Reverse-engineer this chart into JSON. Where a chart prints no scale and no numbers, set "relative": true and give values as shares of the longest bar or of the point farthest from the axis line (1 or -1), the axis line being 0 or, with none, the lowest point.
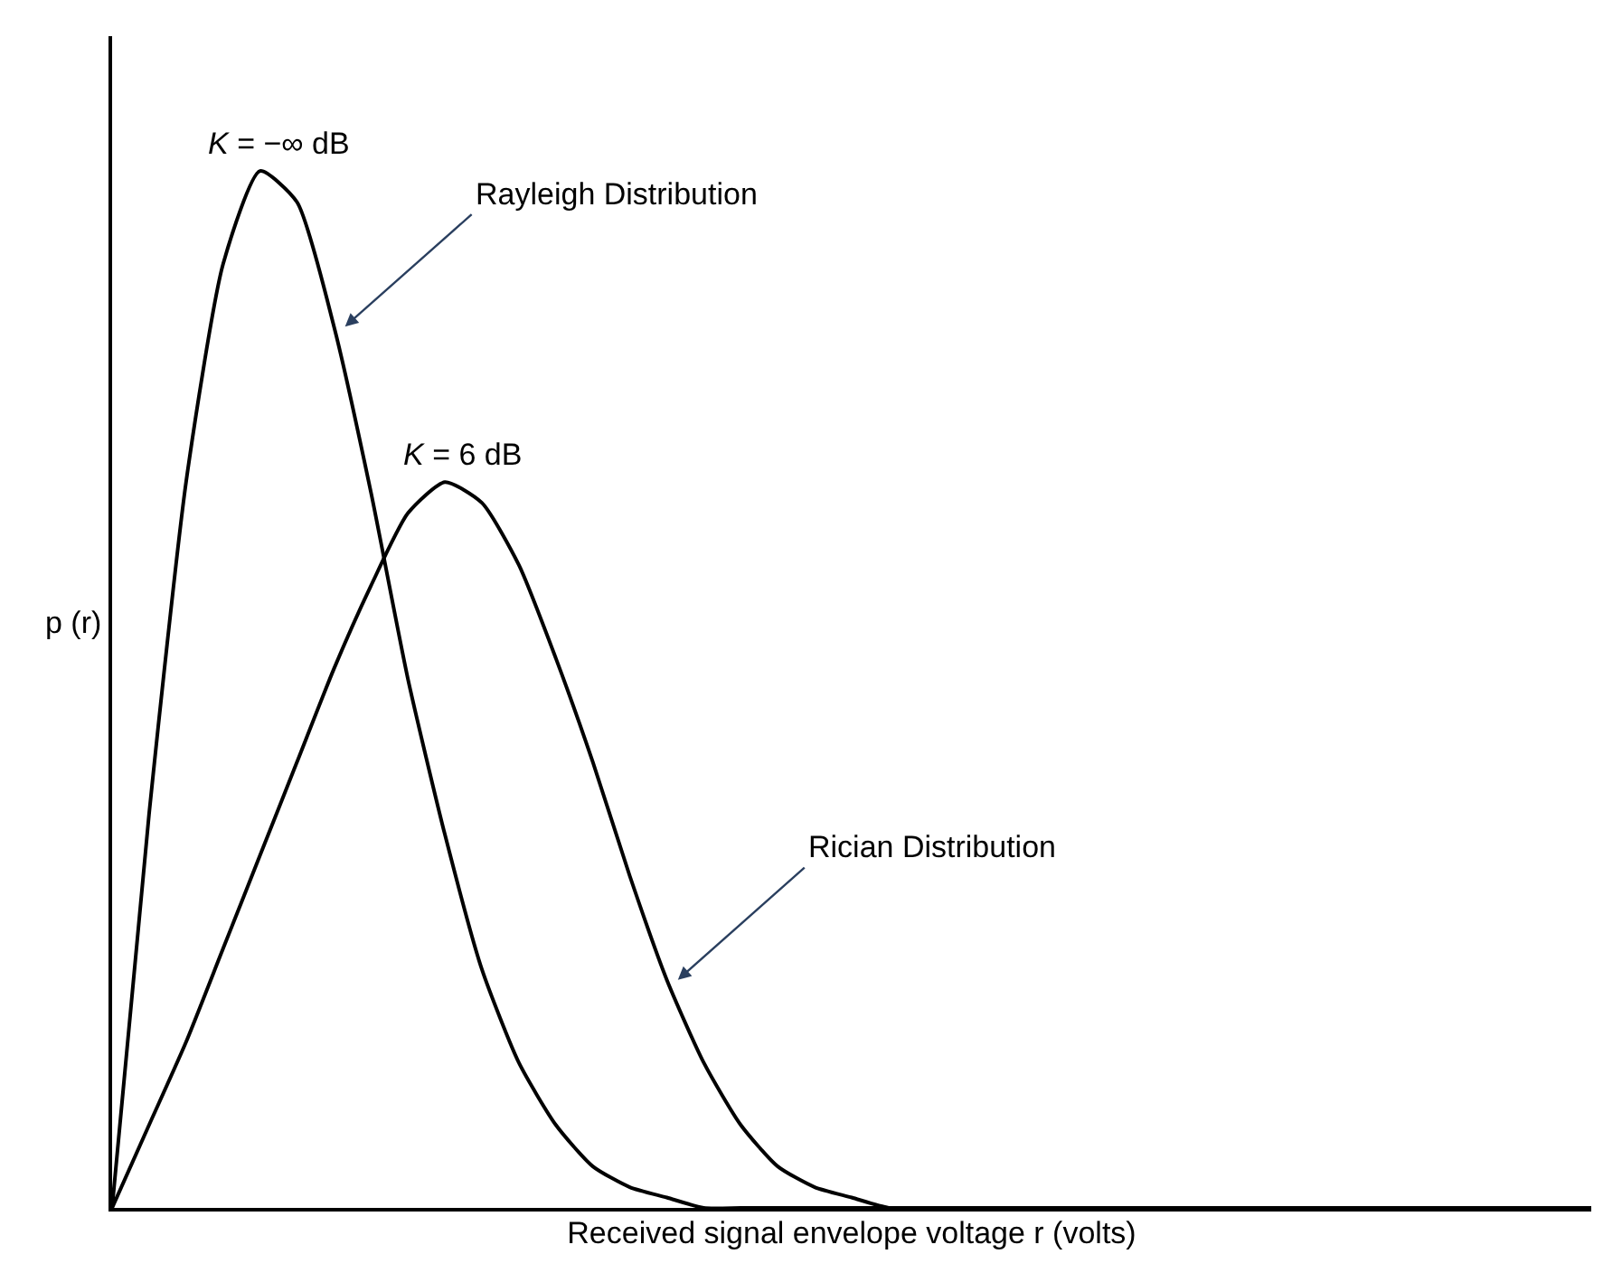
{
  "chart_data": {
    "type": "line",
    "relative": true,
    "xlabel": "Received signal envelope voltage r (volts)",
    "ylabel": "p (r)",
    "categories": [
      null,
      null,
      null,
      null,
      null,
      null,
      null,
      null,
      null,
      null,
      null,
      null,
      null,
      null,
      null,
      null,
      null,
      null,
      null,
      null,
      null,
      null,
      null,
      null,
      null,
      null,
      null,
      null,
      null,
      null,
      null,
      null,
      null,
      null,
      null,
      null,
      null,
      null,
      null,
      null,
      null
    ],
    "series": [
      {
        "color": "#000000",
        "values": [
          0,
          0.38,
          0.7,
          0.91,
          1.0,
          0.97,
          0.85,
          0.69,
          0.51,
          0.36,
          0.23,
          0.14,
          0.08,
          0.04,
          0.02,
          0.01,
          0,
          0,
          0,
          0,
          0,
          0,
          0,
          0,
          0,
          0,
          0,
          0,
          0,
          0,
          0,
          0,
          0,
          0,
          0,
          0,
          0,
          0,
          0,
          0,
          0
        ]
      },
      {
        "color": "#000000",
        "values": [
          0,
          0.08,
          0.16,
          0.25,
          0.34,
          0.43,
          0.52,
          0.6,
          0.67,
          0.7,
          0.68,
          0.62,
          0.53,
          0.43,
          0.32,
          0.22,
          0.14,
          0.08,
          0.04,
          0.02,
          0.01,
          0,
          0,
          0,
          0,
          0,
          0,
          0,
          0,
          0,
          0,
          0,
          0,
          0,
          0,
          0,
          0,
          0,
          0,
          0,
          0
        ]
      }
    ],
    "annotations": [
      "K = −∞ dB",
      "Rayleigh Distribution",
      "K = 6 dB",
      "Rician Distribution"
    ],
    "marker": "none",
    "line_style": "solid"
  }
}
